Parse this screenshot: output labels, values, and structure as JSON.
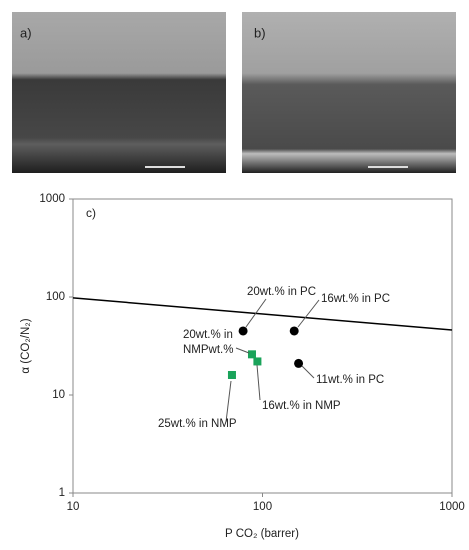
{
  "panels": [
    {
      "label": "a)"
    },
    {
      "label": "b)"
    }
  ],
  "chart_data": {
    "type": "scatter",
    "panel_label": "c)",
    "x_label": "P CO₂ (barrer)",
    "y_label": "α (CO₂/N₂)",
    "xscale": "log",
    "yscale": "log",
    "xlim": [
      10,
      1000
    ],
    "ylim": [
      1,
      1000
    ],
    "xticks": [
      10,
      100,
      1000
    ],
    "yticks": [
      1,
      10,
      100,
      1000
    ],
    "series": [
      {
        "mode": "line",
        "color": "#000000",
        "x": [
          10,
          1000
        ],
        "values": [
          98,
          46
        ]
      },
      {
        "mode": "circle",
        "color": "#000000",
        "x": [
          79,
          147,
          155
        ],
        "values": [
          45,
          45,
          21
        ]
      },
      {
        "mode": "square",
        "color": "#1aa35a",
        "x": [
          88,
          94,
          69
        ],
        "values": [
          26,
          22,
          16
        ]
      }
    ],
    "annotations": [
      {
        "text": [
          "20wt.% in PC"
        ]
      },
      {
        "text": [
          "16wt.% in PC"
        ]
      },
      {
        "text": [
          "11wt.% in PC"
        ]
      },
      {
        "text": [
          "20wt.% in",
          "NMPwt.%"
        ]
      },
      {
        "text": [
          "16wt.% in NMP"
        ]
      },
      {
        "text": [
          "25wt.% in NMP"
        ]
      }
    ]
  }
}
